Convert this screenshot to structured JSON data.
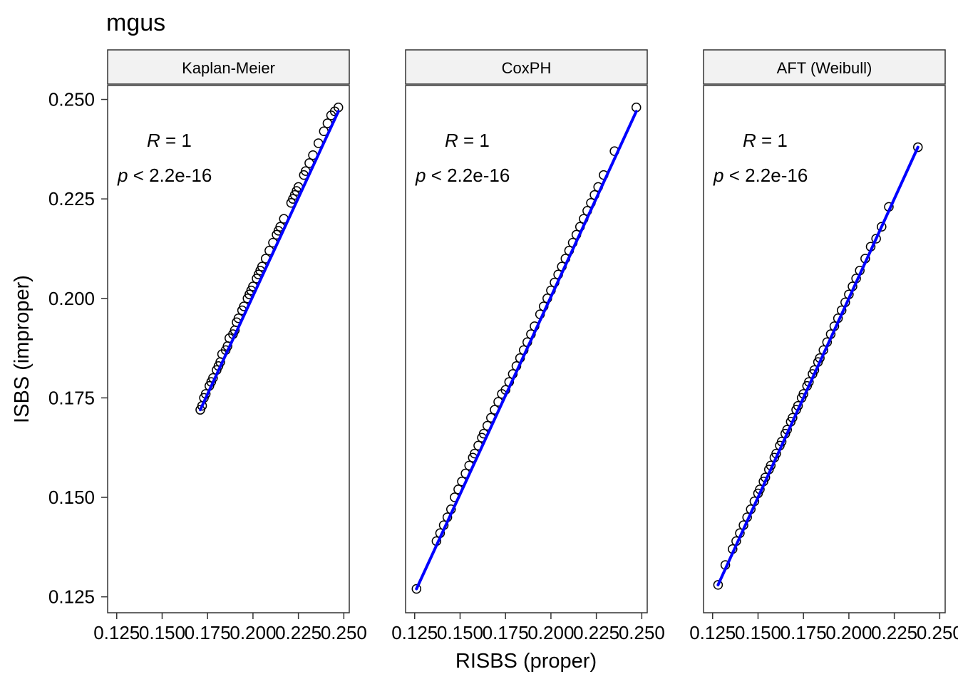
{
  "chart_data": {
    "type": "scatter",
    "title": "mgus",
    "xlabel": "RISBS (proper)",
    "ylabel": "ISBS (improper)",
    "xlim": [
      0.12,
      0.253
    ],
    "ylim": [
      0.121,
      0.2535
    ],
    "x_ticks": [
      "0.125",
      "0.150",
      "0.175",
      "0.200",
      "0.225",
      "0.250"
    ],
    "y_ticks": [
      "0.125",
      "0.150",
      "0.175",
      "0.200",
      "0.225",
      "0.250"
    ],
    "grid": false,
    "legend": "none",
    "point_color": "#000000",
    "fit_line_color": "#0000ff",
    "panels": [
      {
        "label": "Kaplan-Meier",
        "annotation": {
          "r_symbol": "R",
          "r_value": " = 1",
          "p_symbol": "p",
          "p_value": " < 2.2e-16"
        },
        "fit_line": [
          [
            0.171,
            0.172
          ],
          [
            0.247,
            0.247
          ]
        ],
        "points": [
          [
            0.171,
            0.172
          ],
          [
            0.172,
            0.173
          ],
          [
            0.173,
            0.175
          ],
          [
            0.174,
            0.176
          ],
          [
            0.176,
            0.178
          ],
          [
            0.177,
            0.179
          ],
          [
            0.178,
            0.18
          ],
          [
            0.18,
            0.182
          ],
          [
            0.181,
            0.183
          ],
          [
            0.182,
            0.184
          ],
          [
            0.183,
            0.186
          ],
          [
            0.185,
            0.187
          ],
          [
            0.186,
            0.188
          ],
          [
            0.187,
            0.19
          ],
          [
            0.189,
            0.191
          ],
          [
            0.19,
            0.192
          ],
          [
            0.191,
            0.194
          ],
          [
            0.192,
            0.195
          ],
          [
            0.194,
            0.197
          ],
          [
            0.195,
            0.198
          ],
          [
            0.197,
            0.2
          ],
          [
            0.198,
            0.201
          ],
          [
            0.199,
            0.202
          ],
          [
            0.2,
            0.203
          ],
          [
            0.202,
            0.205
          ],
          [
            0.203,
            0.206
          ],
          [
            0.204,
            0.207
          ],
          [
            0.205,
            0.208
          ],
          [
            0.207,
            0.21
          ],
          [
            0.209,
            0.212
          ],
          [
            0.211,
            0.214
          ],
          [
            0.213,
            0.216
          ],
          [
            0.214,
            0.217
          ],
          [
            0.215,
            0.218
          ],
          [
            0.217,
            0.22
          ],
          [
            0.221,
            0.224
          ],
          [
            0.222,
            0.225
          ],
          [
            0.223,
            0.226
          ],
          [
            0.224,
            0.227
          ],
          [
            0.225,
            0.228
          ],
          [
            0.228,
            0.231
          ],
          [
            0.229,
            0.232
          ],
          [
            0.231,
            0.234
          ],
          [
            0.233,
            0.236
          ],
          [
            0.236,
            0.239
          ],
          [
            0.239,
            0.242
          ],
          [
            0.241,
            0.244
          ],
          [
            0.243,
            0.246
          ],
          [
            0.245,
            0.247
          ],
          [
            0.247,
            0.248
          ]
        ]
      },
      {
        "label": "CoxPH",
        "annotation": {
          "r_symbol": "R",
          "r_value": " = 1",
          "p_symbol": "p",
          "p_value": " < 2.2e-16"
        },
        "fit_line": [
          [
            0.126,
            0.127
          ],
          [
            0.247,
            0.247
          ]
        ],
        "points": [
          [
            0.126,
            0.127
          ],
          [
            0.137,
            0.139
          ],
          [
            0.139,
            0.141
          ],
          [
            0.141,
            0.143
          ],
          [
            0.143,
            0.145
          ],
          [
            0.145,
            0.147
          ],
          [
            0.147,
            0.15
          ],
          [
            0.149,
            0.152
          ],
          [
            0.151,
            0.154
          ],
          [
            0.153,
            0.156
          ],
          [
            0.155,
            0.158
          ],
          [
            0.157,
            0.16
          ],
          [
            0.158,
            0.161
          ],
          [
            0.16,
            0.163
          ],
          [
            0.162,
            0.165
          ],
          [
            0.163,
            0.166
          ],
          [
            0.165,
            0.168
          ],
          [
            0.167,
            0.17
          ],
          [
            0.169,
            0.172
          ],
          [
            0.171,
            0.174
          ],
          [
            0.173,
            0.176
          ],
          [
            0.175,
            0.177
          ],
          [
            0.177,
            0.179
          ],
          [
            0.179,
            0.181
          ],
          [
            0.181,
            0.183
          ],
          [
            0.183,
            0.185
          ],
          [
            0.185,
            0.187
          ],
          [
            0.187,
            0.189
          ],
          [
            0.189,
            0.191
          ],
          [
            0.191,
            0.193
          ],
          [
            0.194,
            0.196
          ],
          [
            0.196,
            0.198
          ],
          [
            0.198,
            0.2
          ],
          [
            0.2,
            0.202
          ],
          [
            0.202,
            0.204
          ],
          [
            0.204,
            0.206
          ],
          [
            0.206,
            0.208
          ],
          [
            0.208,
            0.21
          ],
          [
            0.21,
            0.212
          ],
          [
            0.212,
            0.214
          ],
          [
            0.214,
            0.216
          ],
          [
            0.216,
            0.218
          ],
          [
            0.218,
            0.22
          ],
          [
            0.22,
            0.222
          ],
          [
            0.222,
            0.224
          ],
          [
            0.224,
            0.226
          ],
          [
            0.226,
            0.228
          ],
          [
            0.229,
            0.231
          ],
          [
            0.235,
            0.237
          ],
          [
            0.247,
            0.248
          ]
        ]
      },
      {
        "label": "AFT (Weibull)",
        "annotation": {
          "r_symbol": "R",
          "r_value": " = 1",
          "p_symbol": "p",
          "p_value": " < 2.2e-16"
        },
        "fit_line": [
          [
            0.128,
            0.128
          ],
          [
            0.238,
            0.238
          ]
        ],
        "points": [
          [
            0.128,
            0.128
          ],
          [
            0.132,
            0.133
          ],
          [
            0.136,
            0.137
          ],
          [
            0.138,
            0.139
          ],
          [
            0.14,
            0.141
          ],
          [
            0.142,
            0.143
          ],
          [
            0.144,
            0.145
          ],
          [
            0.146,
            0.147
          ],
          [
            0.148,
            0.149
          ],
          [
            0.15,
            0.151
          ],
          [
            0.151,
            0.152
          ],
          [
            0.153,
            0.154
          ],
          [
            0.154,
            0.155
          ],
          [
            0.156,
            0.157
          ],
          [
            0.157,
            0.158
          ],
          [
            0.159,
            0.16
          ],
          [
            0.16,
            0.161
          ],
          [
            0.162,
            0.163
          ],
          [
            0.163,
            0.164
          ],
          [
            0.165,
            0.166
          ],
          [
            0.166,
            0.167
          ],
          [
            0.168,
            0.169
          ],
          [
            0.169,
            0.17
          ],
          [
            0.171,
            0.172
          ],
          [
            0.172,
            0.173
          ],
          [
            0.174,
            0.175
          ],
          [
            0.175,
            0.176
          ],
          [
            0.177,
            0.178
          ],
          [
            0.178,
            0.179
          ],
          [
            0.18,
            0.181
          ],
          [
            0.181,
            0.182
          ],
          [
            0.183,
            0.184
          ],
          [
            0.184,
            0.185
          ],
          [
            0.186,
            0.187
          ],
          [
            0.188,
            0.189
          ],
          [
            0.19,
            0.191
          ],
          [
            0.192,
            0.193
          ],
          [
            0.194,
            0.195
          ],
          [
            0.196,
            0.197
          ],
          [
            0.198,
            0.199
          ],
          [
            0.2,
            0.201
          ],
          [
            0.202,
            0.203
          ],
          [
            0.204,
            0.205
          ],
          [
            0.206,
            0.207
          ],
          [
            0.209,
            0.21
          ],
          [
            0.212,
            0.213
          ],
          [
            0.215,
            0.215
          ],
          [
            0.218,
            0.218
          ],
          [
            0.222,
            0.223
          ],
          [
            0.238,
            0.238
          ]
        ]
      }
    ]
  }
}
